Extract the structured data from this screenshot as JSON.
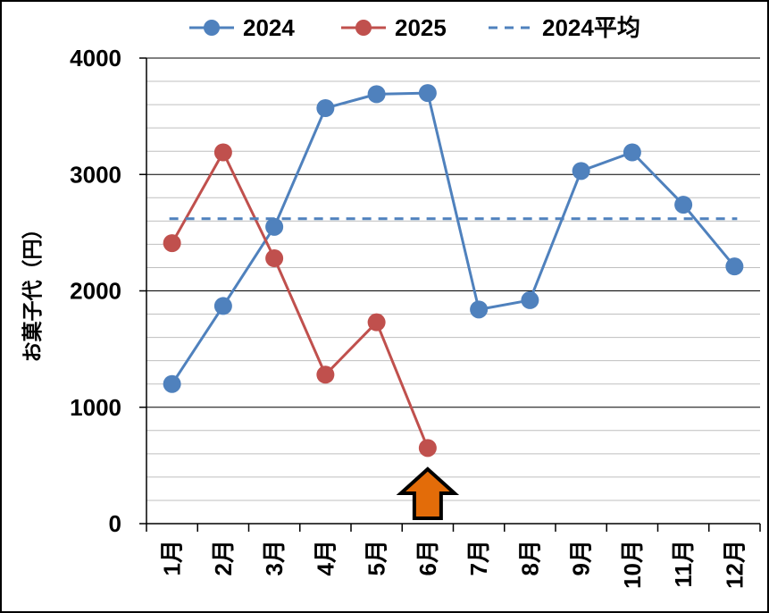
{
  "chart_data": {
    "type": "line",
    "ylabel": "お菓子代（円）",
    "xlabel": "",
    "title": "",
    "ylim": [
      0,
      4000
    ],
    "y_major_ticks": [
      "0",
      "1000",
      "2000",
      "3000",
      "4000"
    ],
    "y_minor_step": 200,
    "grid": true,
    "legend_position": "top",
    "categories": [
      "1月",
      "2月",
      "3月",
      "4月",
      "5月",
      "6月",
      "7月",
      "8月",
      "9月",
      "10月",
      "11月",
      "12月"
    ],
    "series": [
      {
        "name": "2024",
        "color": "#4f81bd",
        "style": "solid-marker",
        "values": [
          1200,
          1870,
          2550,
          3570,
          3690,
          3700,
          1840,
          1920,
          3030,
          3190,
          2740,
          2210
        ]
      },
      {
        "name": "2025",
        "color": "#c0504d",
        "style": "solid-marker",
        "values": [
          2410,
          3190,
          2280,
          1280,
          1730,
          650,
          null,
          null,
          null,
          null,
          null,
          null
        ]
      },
      {
        "name": "2024平均",
        "color": "#4f81bd",
        "style": "dashed",
        "values": [
          2620,
          2620,
          2620,
          2620,
          2620,
          2620,
          2620,
          2620,
          2620,
          2620,
          2620,
          2620
        ]
      }
    ],
    "annotation": {
      "type": "up-arrow",
      "category": "6月",
      "fill": "#e36c09",
      "outline": "#000000"
    }
  }
}
